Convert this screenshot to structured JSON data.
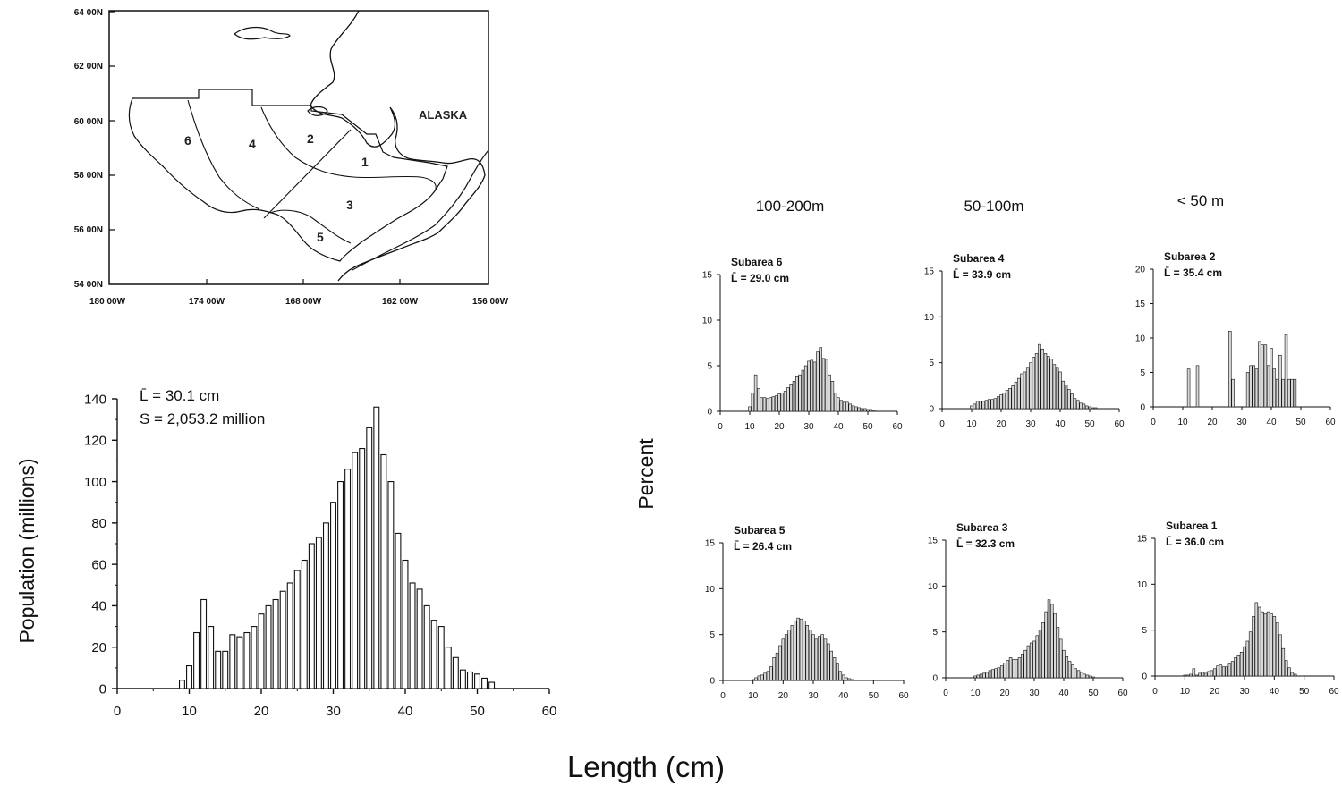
{
  "map": {
    "lat_labels": [
      "64 00N",
      "62 00N",
      "60 00N",
      "58 00N",
      "56 00N",
      "54 00N"
    ],
    "lon_labels": [
      "180 00W",
      "174 00W",
      "168 00W",
      "162 00W",
      "156 00W"
    ],
    "region_label": "ALASKA",
    "subareas": [
      "1",
      "2",
      "3",
      "4",
      "5",
      "6"
    ]
  },
  "labels": {
    "percent_axis": "Percent",
    "length_axis": "Length (cm)",
    "population_axis": "Population (millions)"
  },
  "depth_columns": [
    "100-200m",
    "50-100m",
    "< 50 m"
  ],
  "chart_data": [
    {
      "type": "bar",
      "id": "total",
      "title": "",
      "xlabel": "Length (cm)",
      "ylabel": "Population (millions)",
      "xlim": [
        0,
        60
      ],
      "ylim": [
        0,
        140
      ],
      "x_ticks": [
        0,
        10,
        20,
        30,
        40,
        50,
        60
      ],
      "y_ticks": [
        0,
        20,
        40,
        60,
        80,
        100,
        120,
        140
      ],
      "annotation_mean": "L̄ = 30.1 cm",
      "annotation_total": "S = 2,053.2 million",
      "x": [
        9,
        10,
        11,
        12,
        13,
        14,
        15,
        16,
        17,
        18,
        19,
        20,
        21,
        22,
        23,
        24,
        25,
        26,
        27,
        28,
        29,
        30,
        31,
        32,
        33,
        34,
        35,
        36,
        37,
        38,
        39,
        40,
        41,
        42,
        43,
        44,
        45,
        46,
        47,
        48,
        49,
        50,
        51,
        52
      ],
      "values": [
        4,
        11,
        27,
        43,
        30,
        18,
        18,
        26,
        25,
        27,
        30,
        36,
        40,
        43,
        47,
        51,
        57,
        62,
        70,
        73,
        80,
        90,
        100,
        106,
        114,
        116,
        126,
        136,
        113,
        100,
        75,
        62,
        51,
        48,
        40,
        33,
        30,
        20,
        15,
        9,
        8,
        7,
        5,
        3
      ]
    },
    {
      "type": "bar",
      "id": "subarea6",
      "title": "Subarea 6",
      "mean": "L̄ = 29.0 cm",
      "xlim": [
        0,
        60
      ],
      "ylim": [
        0,
        15
      ],
      "x_ticks": [
        0,
        10,
        20,
        30,
        40,
        50,
        60
      ],
      "y_ticks": [
        0,
        5,
        10,
        15
      ],
      "x": [
        10,
        11,
        12,
        13,
        14,
        15,
        16,
        17,
        18,
        19,
        20,
        21,
        22,
        23,
        24,
        25,
        26,
        27,
        28,
        29,
        30,
        31,
        32,
        33,
        34,
        35,
        36,
        37,
        38,
        39,
        40,
        41,
        42,
        43,
        44,
        45,
        46,
        47,
        48,
        49,
        50,
        51,
        52
      ],
      "values": [
        0.5,
        2,
        4,
        2.5,
        1.5,
        1.5,
        1.4,
        1.5,
        1.6,
        1.7,
        1.9,
        2,
        2.2,
        2.6,
        3,
        3.3,
        3.8,
        4,
        4.5,
        5,
        5.5,
        5.6,
        5.4,
        6.5,
        7,
        5.8,
        5.7,
        4,
        3.3,
        2,
        1.5,
        1.2,
        1,
        1,
        0.8,
        0.6,
        0.5,
        0.4,
        0.3,
        0.3,
        0.2,
        0.2,
        0.1
      ]
    },
    {
      "type": "bar",
      "id": "subarea4",
      "title": "Subarea 4",
      "mean": "L̄ = 33.9 cm",
      "xlim": [
        0,
        60
      ],
      "ylim": [
        0,
        15
      ],
      "x_ticks": [
        0,
        10,
        20,
        30,
        40,
        50,
        60
      ],
      "y_ticks": [
        0,
        5,
        10,
        15
      ],
      "x": [
        10,
        11,
        12,
        13,
        14,
        15,
        16,
        17,
        18,
        19,
        20,
        21,
        22,
        23,
        24,
        25,
        26,
        27,
        28,
        29,
        30,
        31,
        32,
        33,
        34,
        35,
        36,
        37,
        38,
        39,
        40,
        41,
        42,
        43,
        44,
        45,
        46,
        47,
        48,
        49,
        50,
        51,
        52
      ],
      "values": [
        0.3,
        0.5,
        0.8,
        0.8,
        0.8,
        0.9,
        1,
        1,
        1.1,
        1.3,
        1.5,
        1.7,
        2,
        2.2,
        2.5,
        2.9,
        3.3,
        3.8,
        4,
        4.5,
        5,
        5.6,
        6,
        7,
        6.5,
        6,
        5.7,
        5.4,
        4.8,
        4.5,
        4,
        3,
        2.6,
        2.1,
        1.6,
        1.1,
        0.9,
        0.6,
        0.5,
        0.3,
        0.2,
        0.1,
        0.1
      ]
    },
    {
      "type": "bar",
      "id": "subarea2",
      "title": "Subarea 2",
      "mean": "L̄ = 35.4 cm",
      "xlim": [
        0,
        60
      ],
      "ylim": [
        0,
        20
      ],
      "x_ticks": [
        0,
        10,
        20,
        30,
        40,
        50,
        60
      ],
      "y_ticks": [
        0,
        5,
        10,
        15,
        20
      ],
      "x": [
        12,
        15,
        26,
        27,
        32,
        33,
        34,
        35,
        36,
        37,
        38,
        39,
        40,
        41,
        42,
        43,
        44,
        45,
        46,
        47,
        48
      ],
      "values": [
        5.5,
        6,
        11,
        4,
        5,
        6,
        6,
        5.5,
        9.5,
        9,
        9,
        6,
        8.5,
        5.5,
        4,
        7.5,
        4,
        10.5,
        4,
        4,
        4
      ]
    },
    {
      "type": "bar",
      "id": "subarea5",
      "title": "Subarea 5",
      "mean": "L̄ = 26.4 cm",
      "xlim": [
        0,
        60
      ],
      "ylim": [
        0,
        15
      ],
      "x_ticks": [
        0,
        10,
        20,
        30,
        40,
        50,
        60
      ],
      "y_ticks": [
        0,
        5,
        10,
        15
      ],
      "x": [
        10,
        11,
        12,
        13,
        14,
        15,
        16,
        17,
        18,
        19,
        20,
        21,
        22,
        23,
        24,
        25,
        26,
        27,
        28,
        29,
        30,
        31,
        32,
        33,
        34,
        35,
        36,
        37,
        38,
        39,
        40,
        41,
        42,
        43
      ],
      "values": [
        0.1,
        0.3,
        0.5,
        0.6,
        0.8,
        1,
        1.5,
        2.5,
        3,
        3.8,
        4.5,
        5,
        5.5,
        6,
        6.5,
        6.8,
        6.7,
        6.5,
        6,
        5.5,
        5,
        4.5,
        4.8,
        5,
        4.5,
        4,
        3.2,
        2.5,
        1.8,
        1,
        0.6,
        0.3,
        0.2,
        0.1
      ]
    },
    {
      "type": "bar",
      "id": "subarea3",
      "title": "Subarea 3",
      "mean": "L̄ = 32.3 cm",
      "xlim": [
        0,
        60
      ],
      "ylim": [
        0,
        15
      ],
      "x_ticks": [
        0,
        10,
        20,
        30,
        40,
        50,
        60
      ],
      "y_ticks": [
        0,
        5,
        10,
        15
      ],
      "x": [
        10,
        11,
        12,
        13,
        14,
        15,
        16,
        17,
        18,
        19,
        20,
        21,
        22,
        23,
        24,
        25,
        26,
        27,
        28,
        29,
        30,
        31,
        32,
        33,
        34,
        35,
        36,
        37,
        38,
        39,
        40,
        41,
        42,
        43,
        44,
        45,
        46,
        47,
        48,
        49,
        50
      ],
      "values": [
        0.2,
        0.3,
        0.4,
        0.5,
        0.6,
        0.8,
        0.9,
        1,
        1.1,
        1.3,
        1.6,
        1.9,
        2.2,
        2,
        2,
        2.2,
        2.6,
        3,
        3.5,
        3.8,
        4,
        4.6,
        5.2,
        6,
        7.2,
        8.5,
        8,
        7,
        5.5,
        4.2,
        3,
        2.3,
        1.8,
        1.4,
        1,
        0.8,
        0.6,
        0.4,
        0.3,
        0.2,
        0.1
      ]
    },
    {
      "type": "bar",
      "id": "subarea1",
      "title": "Subarea 1",
      "mean": "L̄ = 36.0 cm",
      "xlim": [
        0,
        60
      ],
      "ylim": [
        0,
        15
      ],
      "x_ticks": [
        0,
        10,
        20,
        30,
        40,
        50,
        60
      ],
      "y_ticks": [
        0,
        5,
        10,
        15
      ],
      "x": [
        10,
        11,
        12,
        13,
        14,
        15,
        16,
        17,
        18,
        19,
        20,
        21,
        22,
        23,
        24,
        25,
        26,
        27,
        28,
        29,
        30,
        31,
        32,
        33,
        34,
        35,
        36,
        37,
        38,
        39,
        40,
        41,
        42,
        43,
        44,
        45,
        46,
        47
      ],
      "values": [
        0.1,
        0.1,
        0.2,
        0.8,
        0.1,
        0.3,
        0.4,
        0.3,
        0.5,
        0.6,
        0.8,
        1.1,
        1.2,
        1,
        1,
        1.3,
        1.6,
        2,
        2.2,
        2.6,
        3.2,
        3.8,
        4.8,
        6.5,
        8,
        7.5,
        7,
        6.8,
        7,
        6.8,
        6.5,
        5.8,
        4.5,
        3,
        1.7,
        0.9,
        0.4,
        0.2
      ]
    }
  ]
}
